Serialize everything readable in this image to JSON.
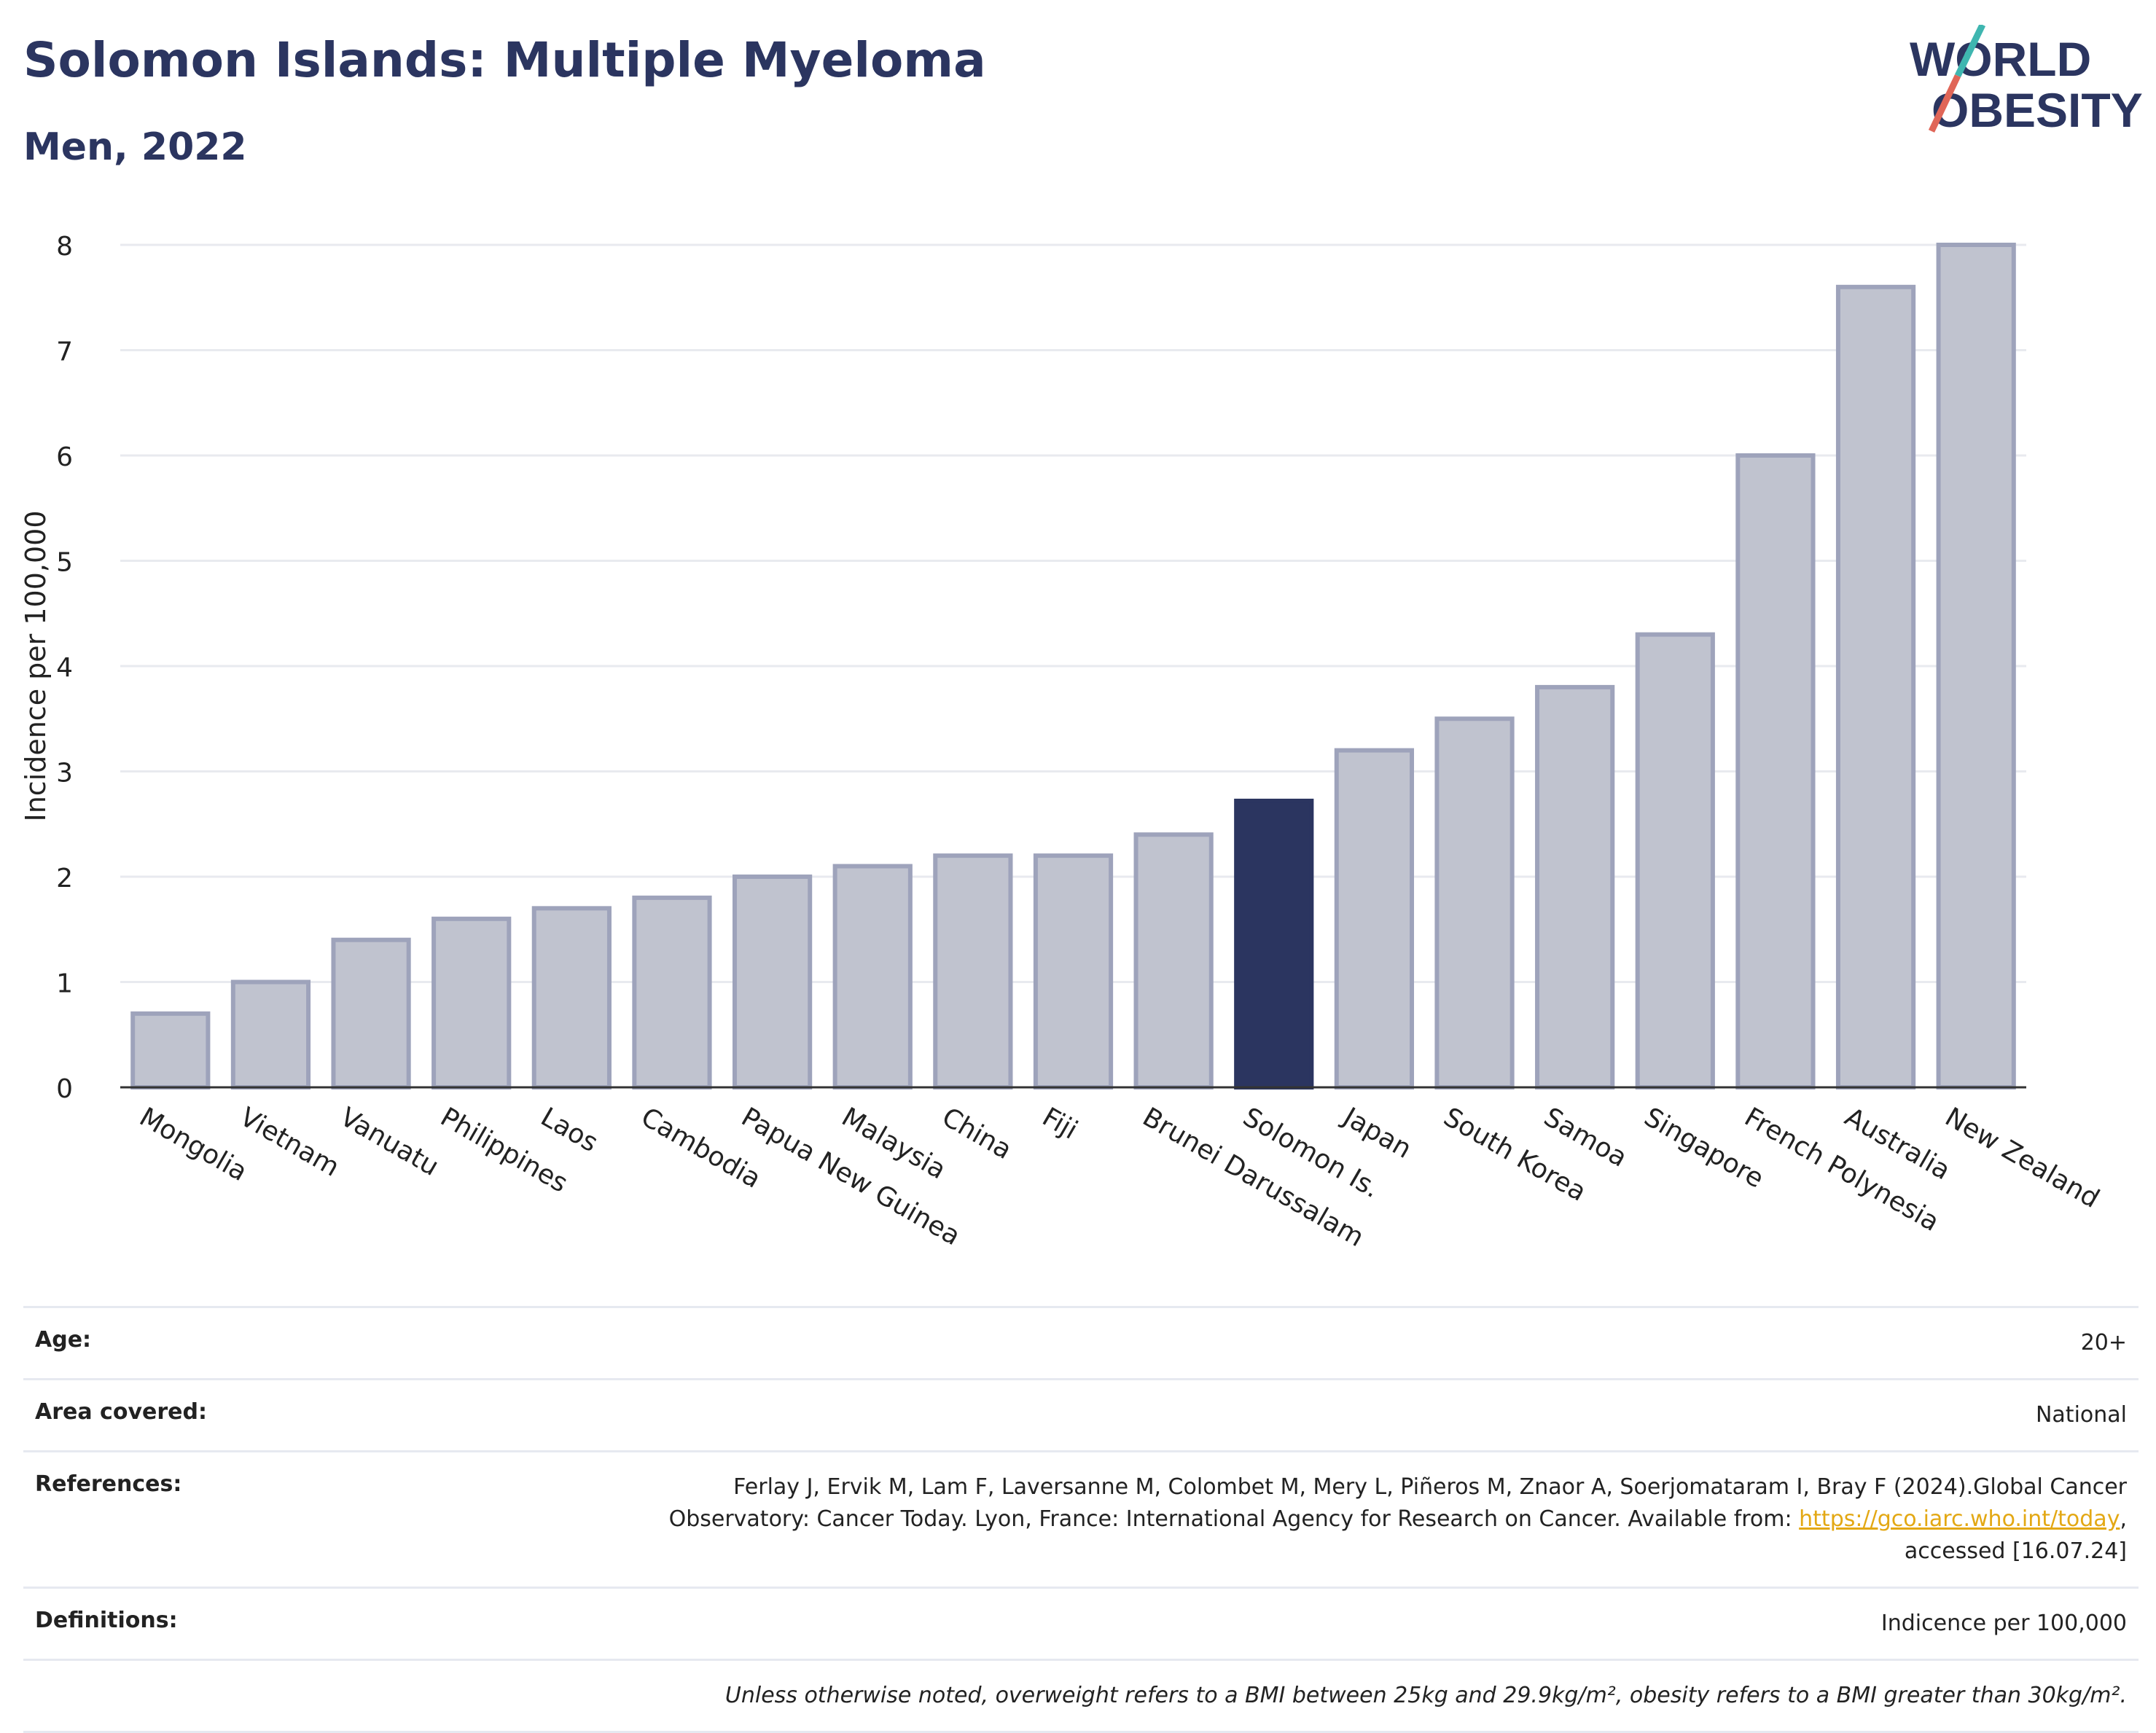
{
  "header": {
    "title": "Solomon Islands: Multiple Myeloma",
    "subtitle": "Men, 2022",
    "logo_line1": "WORLD",
    "logo_line2": "OBESITY"
  },
  "colors": {
    "bar": "#c0c3cf",
    "bar_edge": "#9ea3bb",
    "highlight": "#2b3560",
    "accent_teal": "#3fb6b0",
    "accent_red": "#e06658",
    "link": "#e3a814"
  },
  "chart_data": {
    "type": "bar",
    "title": "Solomon Islands: Multiple Myeloma",
    "subtitle": "Men, 2022",
    "ylabel": "Incidence per 100,000",
    "xlabel": "",
    "ylim": [
      0,
      8
    ],
    "yticks": [
      0,
      1,
      2,
      3,
      4,
      5,
      6,
      7,
      8
    ],
    "grid": true,
    "highlight": "Solomon Is.",
    "categories": [
      "Mongolia",
      "Vietnam",
      "Vanuatu",
      "Philippines",
      "Laos",
      "Cambodia",
      "Papua New Guinea",
      "Malaysia",
      "China",
      "Fiji",
      "Brunei Darussalam",
      "Solomon Is.",
      "Japan",
      "South Korea",
      "Samoa",
      "Singapore",
      "French Polynesia",
      "Australia",
      "New Zealand"
    ],
    "values": [
      0.7,
      1.0,
      1.4,
      1.6,
      1.7,
      1.8,
      2.0,
      2.1,
      2.2,
      2.2,
      2.4,
      2.72,
      3.2,
      3.5,
      3.8,
      4.3,
      6.0,
      7.6,
      8.0
    ]
  },
  "info": {
    "age_label": "Age:",
    "age_value": "20+",
    "area_label": "Area covered:",
    "area_value": "National",
    "references_label": "References:",
    "references_line1": "Ferlay J, Ervik M, Lam F, Laversanne M, Colombet M, Mery L, Piñeros M, Znaor A, Soerjomataram I, Bray F (2024).Global Cancer",
    "references_line2": "Observatory: Cancer Today. Lyon, France: International Agency for Research on Cancer. Available from: ",
    "references_link": "https://gco.iarc.who.int/today",
    "references_line2_end": ",",
    "references_line3": "accessed [16.07.24]",
    "definitions_label": "Definitions:",
    "definitions_value": "Indicence per 100,000",
    "note": "Unless otherwise noted, overweight refers to a BMI between 25kg and 29.9kg/m², obesity refers to a BMI greater than 30kg/m²."
  }
}
